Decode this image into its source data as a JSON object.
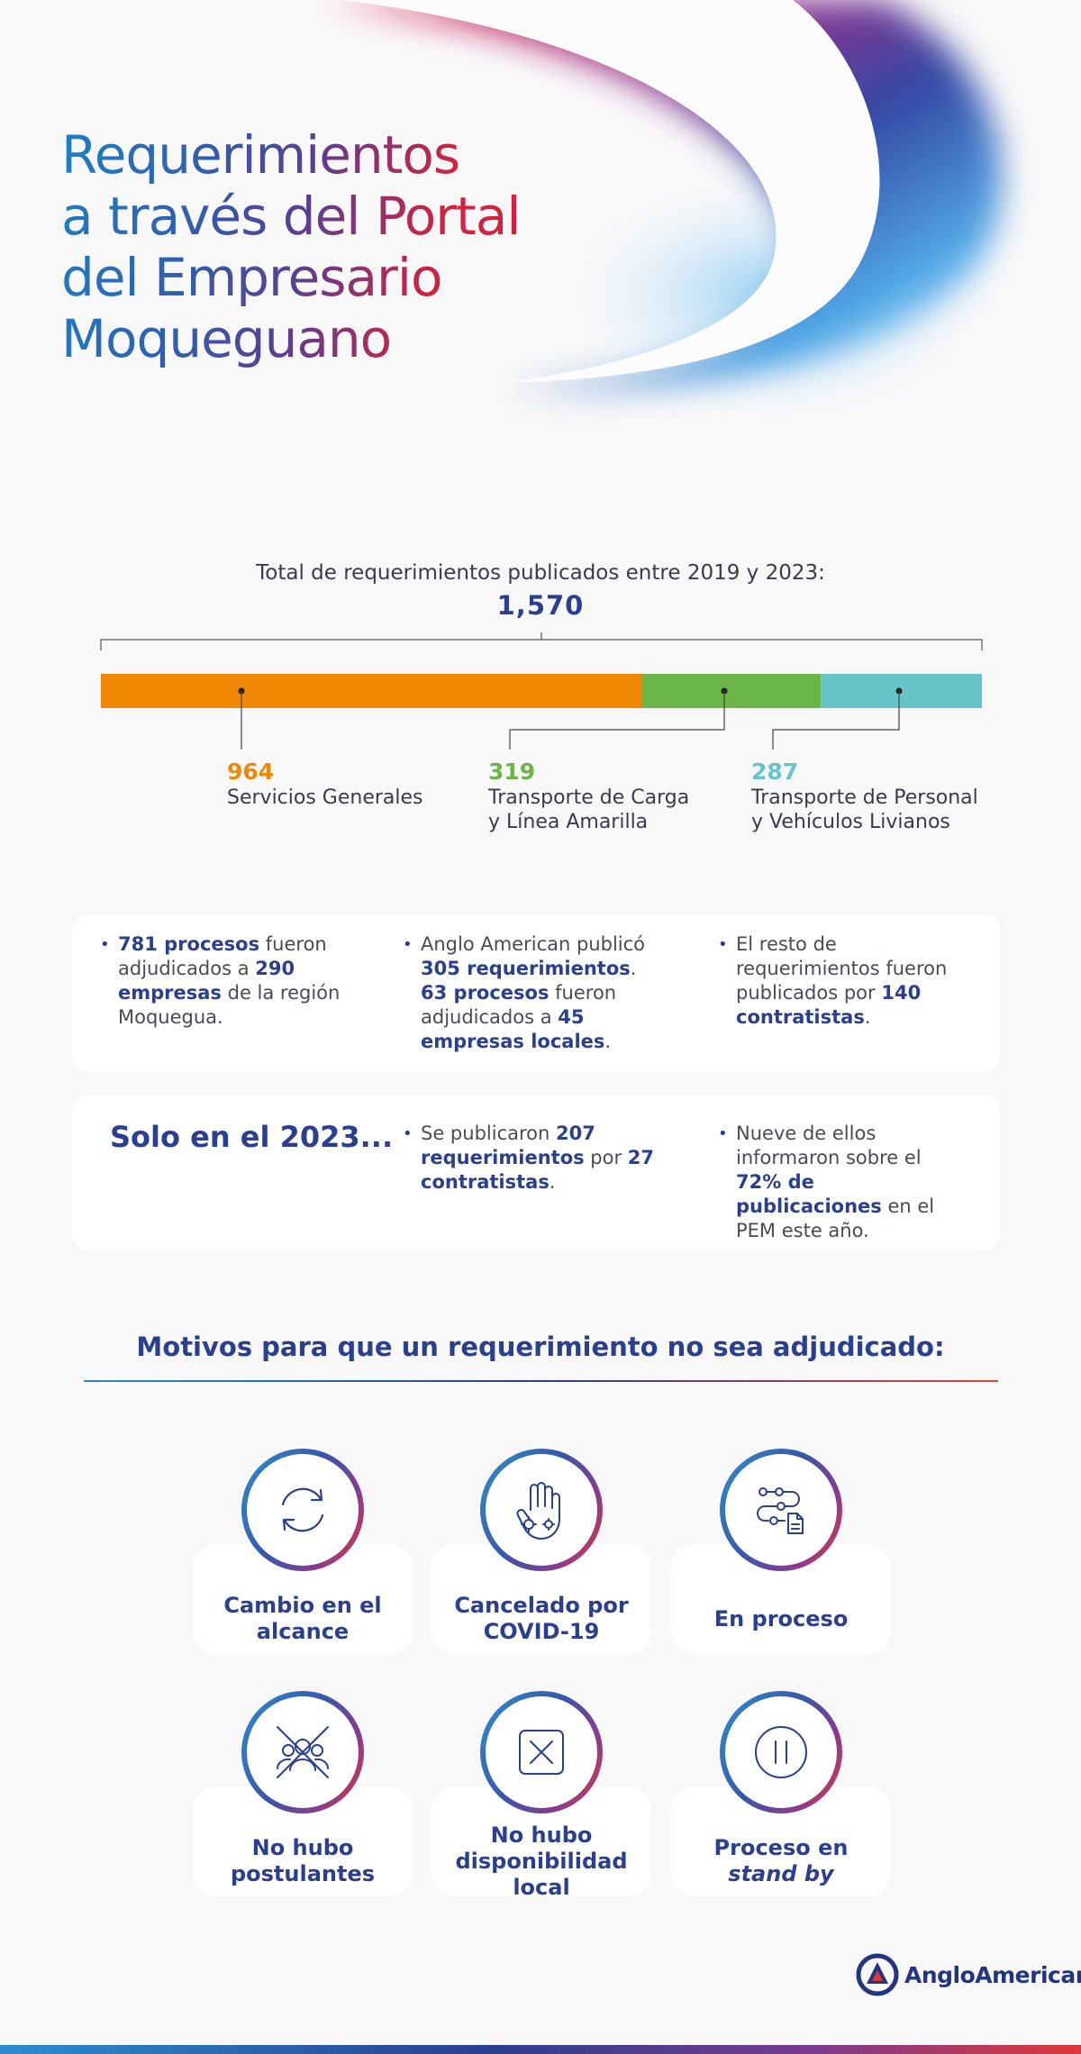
{
  "title_lines": [
    "Requerimientos",
    "a través del Portal",
    "del Empresario",
    "Moqueguano"
  ],
  "total": {
    "label": "Total de requerimientos publicados entre 2019 y 2023:",
    "value": "1,570"
  },
  "chart_data": {
    "type": "bar",
    "title": "Total de requerimientos publicados entre 2019 y 2023:",
    "total": 1570,
    "categories": [
      "Servicios Generales",
      "Transporte de Carga y Línea Amarilla",
      "Transporte de Personal y Vehículos Livianos"
    ],
    "values": [
      964,
      319,
      287
    ],
    "segments": [
      {
        "value": "964",
        "label_line1": "Servicios Generales",
        "label_line2": "",
        "color": "#f28705"
      },
      {
        "value": "319",
        "label_line1": "Transporte de Carga",
        "label_line2": "y Línea Amarilla",
        "color": "#6ab448"
      },
      {
        "value": "287",
        "label_line1": "Transporte de Personal",
        "label_line2": "y Vehículos Livianos",
        "color": "#66c5c8"
      }
    ]
  },
  "facts": {
    "col1": {
      "b1": "781 procesos",
      "t1": " fueron adjudicados a ",
      "b2": "290 empresas",
      "t2": " de la región Moquegua."
    },
    "col2": {
      "t1": "Anglo American publicó ",
      "b1": "305 requerimientos",
      "t2": ". ",
      "b2": "63 procesos",
      "t3": " fueron adjudicados a ",
      "b3": "45 empresas locales",
      "t4": "."
    },
    "col3": {
      "t1": "El resto de requerimientos fueron publicados por ",
      "b1": "140 contratistas",
      "t2": "."
    }
  },
  "year2023": {
    "heading": "Solo en el 2023...",
    "col2": {
      "t1": "Se publicaron ",
      "b1": "207 requerimientos",
      "t2": " por ",
      "b2": "27 contratistas",
      "t3": "."
    },
    "col3": {
      "t1": "Nueve de ellos informaron sobre el ",
      "b1": "72% de publicaciones",
      "t2": " en el PEM este año."
    }
  },
  "motivos": {
    "title": "Motivos para que un requerimiento no sea adjudicado:",
    "items": [
      {
        "line1": "Cambio en el",
        "line2": "alcance",
        "icon": "refresh-icon"
      },
      {
        "line1": "Cancelado por",
        "line2": "COVID-19",
        "icon": "hand-virus-icon"
      },
      {
        "line1": "En proceso",
        "line2": "",
        "icon": "workflow-icon"
      },
      {
        "line1": "No hubo",
        "line2": "postulantes",
        "icon": "no-people-icon"
      },
      {
        "line1": "No hubo",
        "line2": "disponibilidad",
        "line3": "local",
        "icon": "cross-box-icon"
      },
      {
        "line1": "Proceso en",
        "line2": "stand by",
        "icon": "pause-icon"
      }
    ]
  },
  "logo": {
    "text": "AngloAmerican"
  },
  "colors": {
    "brand_blue": "#2a3f8f",
    "orange": "#f28705",
    "green": "#6ab448",
    "teal": "#66c5c8",
    "red": "#e2373a"
  }
}
